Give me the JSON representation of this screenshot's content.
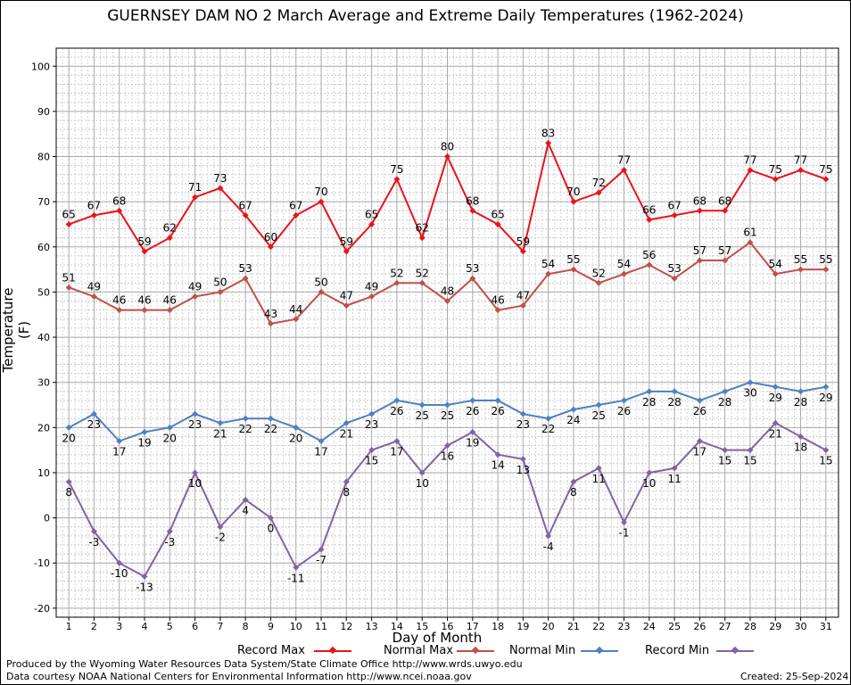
{
  "chart_data": {
    "type": "line",
    "title": "GUERNSEY DAM NO 2 March Average and Extreme Daily Temperatures (1962-2024)",
    "xlabel": "Day of Month",
    "ylabel": "Temperature (F)",
    "ylim": [
      -22,
      104
    ],
    "yticks": [
      -20,
      -10,
      0,
      10,
      20,
      30,
      40,
      50,
      60,
      70,
      80,
      90,
      100
    ],
    "x": [
      1,
      2,
      3,
      4,
      5,
      6,
      7,
      8,
      9,
      10,
      11,
      12,
      13,
      14,
      15,
      16,
      17,
      18,
      19,
      20,
      21,
      22,
      23,
      24,
      25,
      26,
      27,
      28,
      29,
      30,
      31
    ],
    "grid": true,
    "legend_position": "bottom",
    "series": [
      {
        "name": "Record Max",
        "color": "#e8141c",
        "values": [
          65,
          67,
          68,
          59,
          62,
          71,
          73,
          67,
          60,
          67,
          70,
          59,
          65,
          75,
          62,
          80,
          68,
          65,
          59,
          83,
          70,
          72,
          77,
          66,
          67,
          68,
          68,
          77,
          75,
          77,
          75
        ]
      },
      {
        "name": "Normal Max",
        "color": "#c0504d",
        "values": [
          51,
          49,
          46,
          46,
          46,
          49,
          50,
          53,
          43,
          44,
          50,
          47,
          49,
          52,
          52,
          48,
          53,
          46,
          47,
          54,
          55,
          52,
          54,
          56,
          53,
          57,
          57,
          61,
          54,
          55,
          55
        ]
      },
      {
        "name": "Normal Min",
        "color": "#4f81bd",
        "values": [
          20,
          23,
          17,
          19,
          20,
          23,
          21,
          22,
          22,
          20,
          17,
          21,
          23,
          26,
          25,
          25,
          26,
          26,
          23,
          22,
          24,
          25,
          26,
          28,
          28,
          26,
          28,
          30,
          29,
          28,
          29
        ]
      },
      {
        "name": "Record Min",
        "color": "#8064a2",
        "values": [
          8,
          -3,
          -10,
          -13,
          -3,
          10,
          -2,
          4,
          0,
          -11,
          -7,
          8,
          15,
          17,
          10,
          16,
          19,
          14,
          13,
          -4,
          8,
          11,
          -1,
          10,
          11,
          17,
          15,
          15,
          21,
          18,
          15
        ]
      }
    ]
  },
  "footer": {
    "produced_by": "Produced by the Wyoming Water Resources Data System/State Climate Office http://www.wrds.uwyo.edu",
    "data_courtesy": "Data courtesy NOAA National Centers for Environmental Information http://www.ncei.noaa.gov",
    "created": "Created:  25-Sep-2024"
  }
}
